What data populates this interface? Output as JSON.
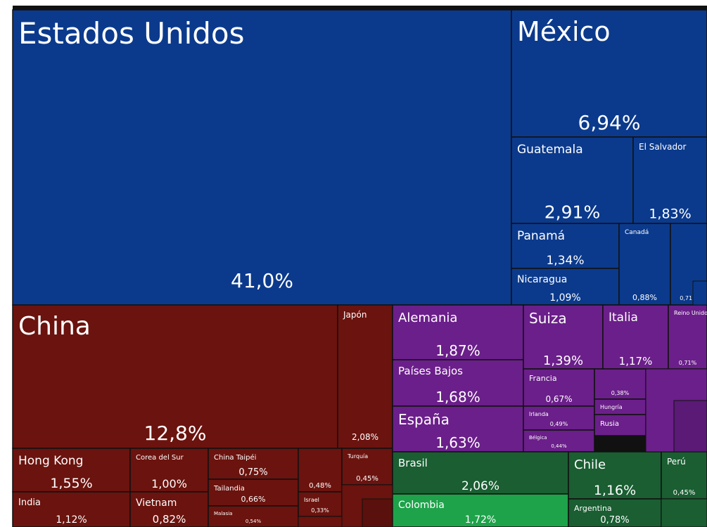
{
  "chart_data": {
    "type": "treemap",
    "items": [
      {
        "name": "Estados Unidos",
        "value": 41.0,
        "value_label": "41,0%",
        "color": "#0b3a8c"
      },
      {
        "name": "México",
        "value": 6.94,
        "value_label": "6,94%",
        "color": "#0b3a8c"
      },
      {
        "name": "Guatemala",
        "value": 2.91,
        "value_label": "2,91%",
        "color": "#0b3a8c"
      },
      {
        "name": "El Salvador",
        "value": 1.83,
        "value_label": "1,83%",
        "color": "#0b3a8c"
      },
      {
        "name": "Panamá",
        "value": 1.34,
        "value_label": "1,34%",
        "color": "#0b3a8c"
      },
      {
        "name": "Nicaragua",
        "value": 1.09,
        "value_label": "1,09%",
        "color": "#0b3a8c"
      },
      {
        "name": "Canadá",
        "value": 0.88,
        "value_label": "0,88%",
        "color": "#0b3a8c"
      },
      {
        "name": null,
        "value": 0.71,
        "value_label": "0,71%",
        "color": "#0b3a8c"
      },
      {
        "name": "China",
        "value": 12.8,
        "value_label": "12,8%",
        "color": "#6b130e"
      },
      {
        "name": "Japón",
        "value": 2.08,
        "value_label": "2,08%",
        "color": "#6b130e"
      },
      {
        "name": "Hong Kong",
        "value": 1.55,
        "value_label": "1,55%",
        "color": "#6b130e"
      },
      {
        "name": "India",
        "value": 1.12,
        "value_label": "1,12%",
        "color": "#6b130e"
      },
      {
        "name": "Corea del Sur",
        "value": 1.0,
        "value_label": "1,00%",
        "color": "#6b130e"
      },
      {
        "name": "Vietnam",
        "value": 0.82,
        "value_label": "0,82%",
        "color": "#6b130e"
      },
      {
        "name": "China Taipéi",
        "value": 0.75,
        "value_label": "0,75%",
        "color": "#6b130e"
      },
      {
        "name": "Tailandia",
        "value": 0.66,
        "value_label": "0,66%",
        "color": "#6b130e"
      },
      {
        "name": "Malasia",
        "value": 0.54,
        "value_label": "0,54%",
        "color": "#6b130e"
      },
      {
        "name": null,
        "value": 0.48,
        "value_label": "0,48%",
        "color": "#6b130e"
      },
      {
        "name": "Israel",
        "value": 0.33,
        "value_label": "0,33%",
        "color": "#6b130e"
      },
      {
        "name": "Turquía",
        "value": 0.45,
        "value_label": "0,45%",
        "color": "#6b130e"
      },
      {
        "name": "Alemania",
        "value": 1.87,
        "value_label": "1,87%",
        "color": "#6b1f8a"
      },
      {
        "name": "Países Bajos",
        "value": 1.68,
        "value_label": "1,68%",
        "color": "#6b1f8a"
      },
      {
        "name": "España",
        "value": 1.63,
        "value_label": "1,63%",
        "color": "#6b1f8a"
      },
      {
        "name": "Suiza",
        "value": 1.39,
        "value_label": "1,39%",
        "color": "#6b1f8a"
      },
      {
        "name": "Italia",
        "value": 1.17,
        "value_label": "1,17%",
        "color": "#6b1f8a"
      },
      {
        "name": "Reino Unido",
        "value": 0.71,
        "value_label": "0,71%",
        "color": "#6b1f8a"
      },
      {
        "name": "Francia",
        "value": 0.67,
        "value_label": "0,67%",
        "color": "#6b1f8a"
      },
      {
        "name": "Irlanda",
        "value": 0.49,
        "value_label": "0,49%",
        "color": "#6b1f8a"
      },
      {
        "name": "Bélgica",
        "value": 0.44,
        "value_label": "0,44%",
        "color": "#6b1f8a"
      },
      {
        "name": null,
        "value": 0.38,
        "value_label": "0,38%",
        "color": "#6b1f8a"
      },
      {
        "name": "Hungría",
        "value": null,
        "value_label": null,
        "color": "#6b1f8a"
      },
      {
        "name": "Rusia",
        "value": null,
        "value_label": null,
        "color": "#6b1f8a"
      },
      {
        "name": "Brasil",
        "value": 2.06,
        "value_label": "2,06%",
        "color": "#1a5e32"
      },
      {
        "name": "Colombia",
        "value": 1.72,
        "value_label": "1,72%",
        "color": "#1ea34a"
      },
      {
        "name": "Chile",
        "value": 1.16,
        "value_label": "1,16%",
        "color": "#1a5e32"
      },
      {
        "name": "Argentina",
        "value": 0.78,
        "value_label": "0,78%",
        "color": "#1a5e32"
      },
      {
        "name": "Perú",
        "value": 0.45,
        "value_label": "0,45%",
        "color": "#1a5e32"
      }
    ]
  }
}
